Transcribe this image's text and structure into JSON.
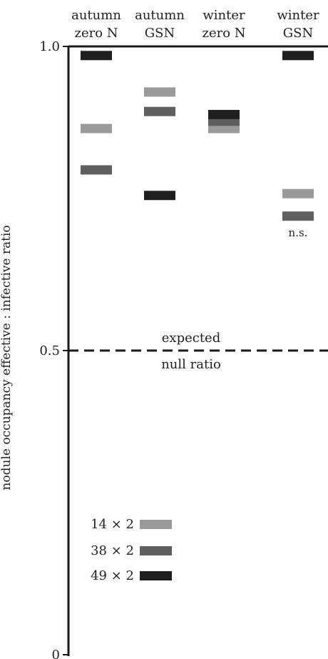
{
  "chart_data": {
    "type": "scatter",
    "ylabel": "nodule occupancy effective : infective ratio",
    "ylim": [
      0,
      1
    ],
    "y_ticks": [
      "0",
      "0.5",
      "1.0"
    ],
    "grid": false,
    "categories": [
      {
        "line1": "autumn",
        "line2": "zero N"
      },
      {
        "line1": "autumn",
        "line2": "GSN"
      },
      {
        "line1": "winter",
        "line2": "zero N"
      },
      {
        "line1": "winter",
        "line2": "GSN"
      }
    ],
    "series": [
      {
        "name": "14 × 2",
        "color": "#9a9a9a",
        "values": [
          0.865,
          0.925,
          0.865,
          0.758
        ]
      },
      {
        "name": "38 × 2",
        "color": "#5f5f5f",
        "values": [
          0.797,
          0.893,
          0.877,
          0.721
        ]
      },
      {
        "name": "49 × 2",
        "color": "#1f1f1f",
        "values": [
          0.985,
          0.755,
          0.888,
          0.985
        ]
      }
    ],
    "reference_line": {
      "value": 0.5,
      "label_line1": "expected",
      "label_line2": "null ratio"
    },
    "annotations": [
      {
        "category_index": 3,
        "text": "n.s."
      }
    ],
    "legend_position": "bottom-left"
  },
  "colors": {
    "axis": "#1a1a1a"
  }
}
